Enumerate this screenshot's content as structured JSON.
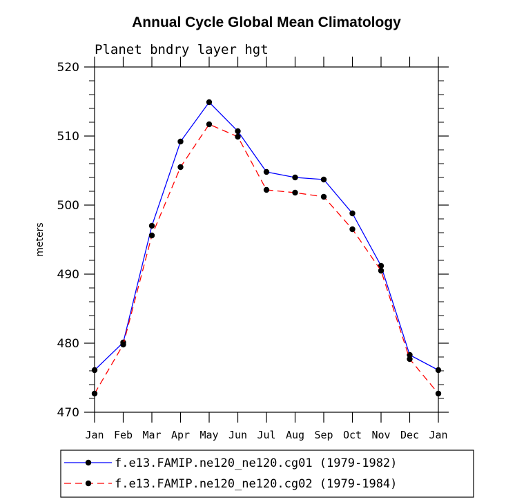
{
  "chart_data": {
    "type": "line",
    "title": "Annual Cycle Global Mean Climatology",
    "subtitle": "Planet bndry layer hgt",
    "xlabel": "",
    "ylabel": "meters",
    "categories": [
      "Jan",
      "Feb",
      "Mar",
      "Apr",
      "May",
      "Jun",
      "Jul",
      "Aug",
      "Sep",
      "Oct",
      "Nov",
      "Dec",
      "Jan"
    ],
    "ylim": [
      470,
      520
    ],
    "yticks": [
      470,
      480,
      490,
      500,
      510,
      520
    ],
    "ytick_labels": [
      "470",
      "480",
      "490",
      "500",
      "510",
      "520"
    ],
    "series": [
      {
        "name": "f.e13.FAMIP.ne120_ne120.cg01 (1979-1982)",
        "color": "#0000ff",
        "dash": "solid",
        "values": [
          476.1,
          480.1,
          497.0,
          509.2,
          514.9,
          510.7,
          504.8,
          504.0,
          503.7,
          498.8,
          491.2,
          478.3,
          476.1
        ]
      },
      {
        "name": "f.e13.FAMIP.ne120_ne120.cg02 (1979-1984)",
        "color": "#ff0000",
        "dash": "dashed",
        "values": [
          472.7,
          479.8,
          495.6,
          505.5,
          511.7,
          509.9,
          502.2,
          501.8,
          501.2,
          496.5,
          490.5,
          477.7,
          472.7
        ]
      }
    ],
    "legend_position": "bottom"
  }
}
